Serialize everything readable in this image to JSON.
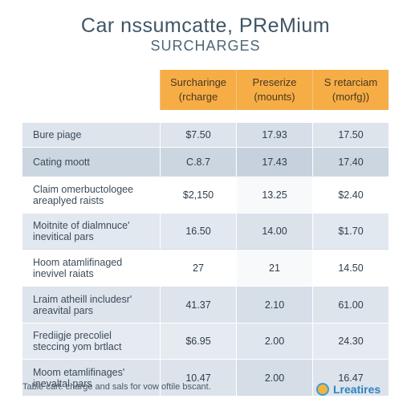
{
  "header": {
    "title": "Car nssumcatte, PReMium",
    "subtitle": "SURCHARGES"
  },
  "chart_data": {
    "type": "table",
    "columns": [
      {
        "line1": "Surcharinge",
        "line2": "(rcharge"
      },
      {
        "line1": "Preserize",
        "line2": "(mounts)"
      },
      {
        "line1": "S retarciam",
        "line2": "(morfg))"
      }
    ],
    "rows": [
      {
        "label_lines": [
          "Bure piage"
        ],
        "values": [
          "$7.50",
          "17.93",
          "17.50"
        ]
      },
      {
        "label_lines": [
          "Cating moott"
        ],
        "values": [
          "C.8.7",
          "17.43",
          "17.40"
        ]
      },
      {
        "label_lines": [
          "Claim omerbuctologee",
          "areaplyed raists"
        ],
        "values": [
          "$2,150",
          "13.25",
          "$2.40"
        ]
      },
      {
        "label_lines": [
          "Moitnite of dialmnuce'",
          "inevitical pars"
        ],
        "values": [
          "16.50",
          "14.00",
          "$1.70"
        ]
      },
      {
        "label_lines": [
          "Hoom atamlifinaged",
          "inevivel raiats"
        ],
        "values": [
          "27",
          "21",
          "14.50"
        ]
      },
      {
        "label_lines": [
          "Lraim atheill includesr'",
          "areavital pars"
        ],
        "values": [
          "41.37",
          "2.10",
          "61.00"
        ]
      },
      {
        "label_lines": [
          "Frediigje precoliel",
          "steccing yom brtlact"
        ],
        "values": [
          "$6.95",
          "2.00",
          "24.30"
        ]
      },
      {
        "label_lines": [
          "Moom etamlifinages'",
          "inevaltal pars"
        ],
        "values": [
          "10.47",
          "2.00",
          "16.47"
        ]
      }
    ]
  },
  "footer": {
    "note": "Table cart. charge and sals for vow oftile bscant.",
    "brand": "Lreatires"
  },
  "colors": {
    "header_accent": "#f6ad45",
    "brand_blue": "#2d84c2"
  }
}
